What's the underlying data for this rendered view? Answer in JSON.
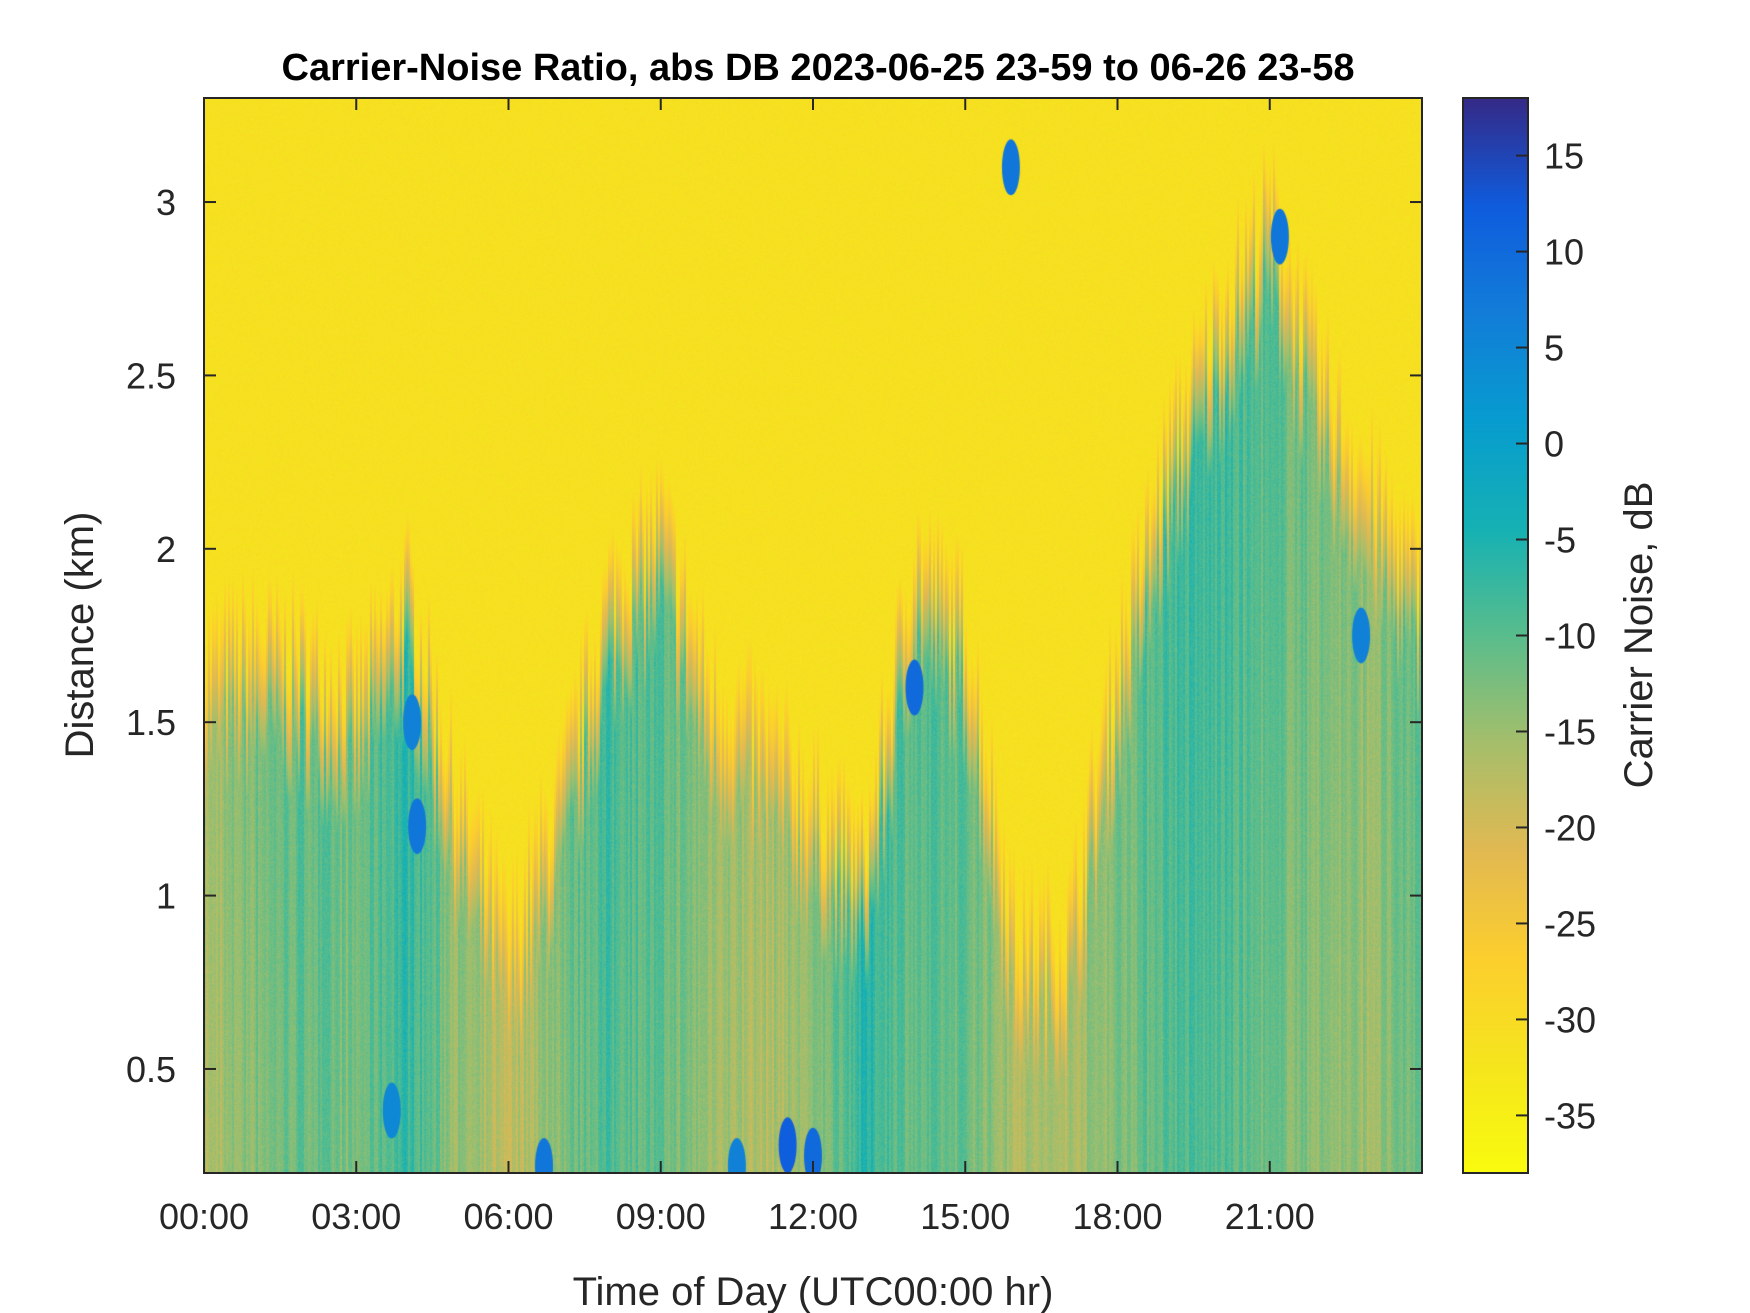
{
  "chart_data": {
    "type": "heatmap",
    "title": "Carrier-Noise Ratio, abs DB 2023-06-25 23-59 to 06-26 23-58",
    "xlabel": "Time of Day (UTC00:00 hr)",
    "ylabel": "Distance (km)",
    "colorbar_label": "Carrier Noise, dB",
    "xlim": [
      0,
      24
    ],
    "ylim": [
      0.2,
      3.3
    ],
    "clim": [
      -38,
      18
    ],
    "x_ticks": [
      0,
      3,
      6,
      9,
      12,
      15,
      18,
      21
    ],
    "x_tick_labels": [
      "00:00",
      "03:00",
      "06:00",
      "09:00",
      "12:00",
      "15:00",
      "18:00",
      "21:00"
    ],
    "y_ticks": [
      0.5,
      1,
      1.5,
      2,
      2.5,
      3
    ],
    "y_tick_labels": [
      "0.5",
      "1",
      "1.5",
      "2",
      "2.5",
      "3"
    ],
    "colorbar_ticks": [
      15,
      10,
      5,
      0,
      -5,
      -10,
      -15,
      -20,
      -25,
      -30,
      -35
    ],
    "colorbar_tick_labels": [
      "15",
      "10",
      "5",
      "0",
      "-5",
      "-10",
      "-15",
      "-20",
      "-25",
      "-30",
      "-35"
    ],
    "colormap": "parula",
    "background_value": -31,
    "signal_top_km_by_hour": {
      "hours": [
        0,
        1,
        2,
        3,
        4,
        5,
        6,
        7,
        8,
        9,
        10,
        11,
        12,
        13,
        14,
        15,
        16,
        17,
        18,
        19,
        20,
        21,
        22,
        23,
        24
      ],
      "top_km": [
        1.4,
        1.45,
        1.4,
        1.3,
        1.6,
        1.0,
        0.6,
        1.0,
        1.6,
        1.8,
        1.3,
        1.2,
        1.0,
        0.8,
        1.7,
        1.5,
        0.6,
        0.6,
        1.4,
        2.0,
        2.4,
        2.7,
        2.2,
        1.9,
        1.6
      ]
    },
    "signal_intensity_by_hour": {
      "hours": [
        0,
        1,
        2,
        3,
        4,
        5,
        6,
        7,
        8,
        9,
        10,
        11,
        12,
        13,
        14,
        15,
        16,
        17,
        18,
        19,
        20,
        21,
        22,
        23,
        24
      ],
      "peak_db": [
        -16,
        -12,
        -10,
        -12,
        -6,
        -14,
        -18,
        -12,
        -8,
        -10,
        -14,
        -16,
        -14,
        -6,
        -10,
        -10,
        -16,
        -16,
        -12,
        -8,
        -8,
        -10,
        -12,
        -14,
        -10
      ]
    },
    "notable_features": [
      {
        "x": 3.7,
        "y": 0.38,
        "value": 5
      },
      {
        "x": 12.0,
        "y": 0.25,
        "value": 10
      },
      {
        "x": 14.0,
        "y": 1.6,
        "value": 10
      },
      {
        "x": 15.9,
        "y": 3.1,
        "value": 8
      },
      {
        "x": 21.2,
        "y": 2.9,
        "value": 8
      },
      {
        "x": 22.8,
        "y": 1.75,
        "value": 6
      },
      {
        "x": 4.1,
        "y": 1.5,
        "value": 6
      },
      {
        "x": 4.2,
        "y": 1.2,
        "value": 8
      },
      {
        "x": 6.7,
        "y": 0.22,
        "value": 8
      },
      {
        "x": 10.5,
        "y": 0.22,
        "value": 6
      },
      {
        "x": 11.5,
        "y": 0.28,
        "value": 12
      }
    ]
  }
}
